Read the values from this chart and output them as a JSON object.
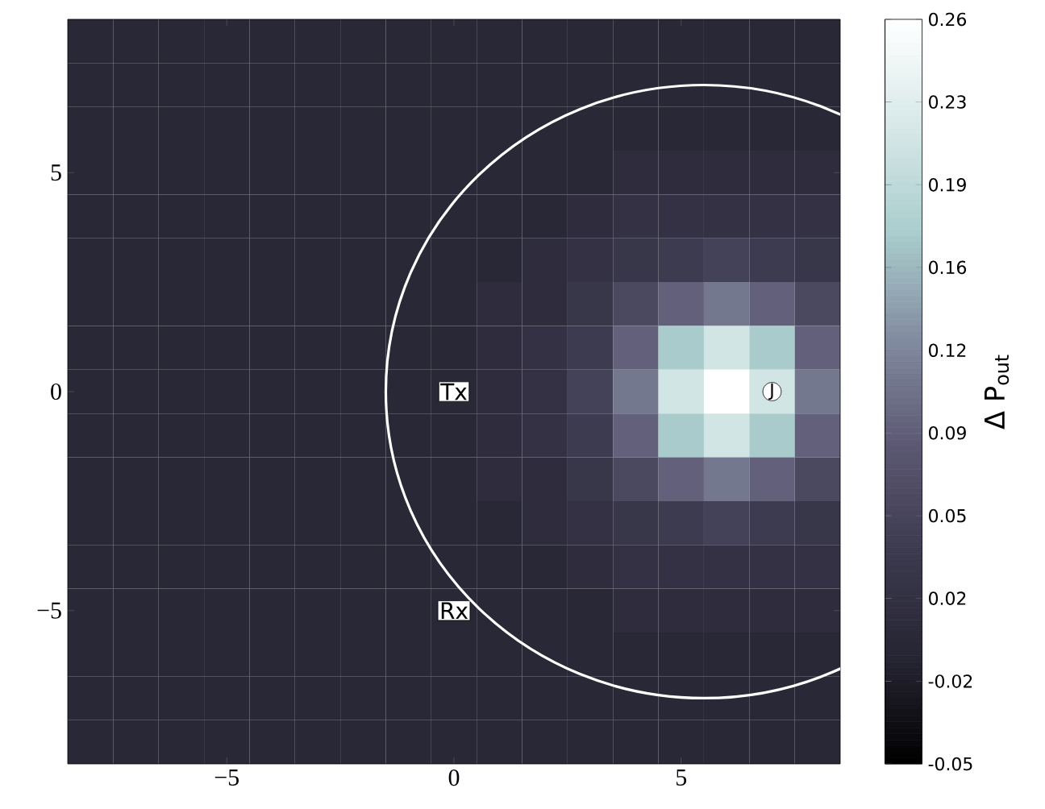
{
  "chart_data": {
    "type": "heatmap",
    "clabel": "Δ P$_{out}$",
    "categories": [
      null,
      null,
      null,
      "−5",
      null,
      null,
      null,
      null,
      "0",
      null,
      null,
      null,
      null,
      "5",
      null,
      null,
      null
    ],
    "y_categories": [
      null,
      null,
      null,
      "5",
      null,
      null,
      null,
      null,
      "0",
      null,
      null,
      null,
      null,
      "−5",
      null,
      null,
      null
    ],
    "cells": [
      [
        0,
        0,
        0,
        0,
        0,
        0,
        0,
        0,
        0,
        0,
        0,
        0,
        0,
        0,
        0,
        0,
        0
      ],
      [
        0,
        0,
        0,
        0,
        0,
        0,
        0,
        0,
        0,
        0,
        0,
        0,
        0,
        0,
        0,
        0,
        0
      ],
      [
        0,
        0,
        0,
        0,
        0,
        0,
        0,
        0,
        0,
        0,
        0,
        0,
        0,
        0,
        0,
        0,
        0
      ],
      [
        0,
        0,
        0,
        0,
        0,
        0,
        0,
        0,
        0,
        0,
        0,
        0,
        0.01,
        0.01,
        0.01,
        0.01,
        0.01
      ],
      [
        0,
        0,
        0,
        0,
        0,
        0,
        0,
        0,
        0,
        0,
        0,
        0.01,
        0.02,
        0.02,
        0.02,
        0.02,
        0.02
      ],
      [
        0,
        0,
        0,
        0,
        0,
        0,
        0,
        0,
        0,
        0,
        0.01,
        0.02,
        0.03,
        0.04,
        0.05,
        0.04,
        0.03
      ],
      [
        0,
        0,
        0,
        0,
        0,
        0,
        0,
        0,
        0,
        0.01,
        0.01,
        0.03,
        0.06,
        0.09,
        0.11,
        0.09,
        0.06
      ],
      [
        0,
        0,
        0,
        0,
        0,
        0,
        0,
        0,
        0,
        0.01,
        0.02,
        0.04,
        0.09,
        0.17,
        0.21,
        0.17,
        0.09
      ],
      [
        0,
        0,
        0,
        0,
        0,
        0,
        0,
        0,
        0,
        0.01,
        0.02,
        0.05,
        0.11,
        0.21,
        0.26,
        0.21,
        0.11
      ],
      [
        0,
        0,
        0,
        0,
        0,
        0,
        0,
        0,
        0,
        0.01,
        0.02,
        0.04,
        0.09,
        0.17,
        0.21,
        0.17,
        0.09
      ],
      [
        0,
        0,
        0,
        0,
        0,
        0,
        0,
        0,
        0,
        0.01,
        0.01,
        0.03,
        0.06,
        0.09,
        0.11,
        0.09,
        0.06
      ],
      [
        0,
        0,
        0,
        0,
        0,
        0,
        0,
        0,
        0,
        0,
        0.01,
        0.02,
        0.03,
        0.04,
        0.05,
        0.04,
        0.03
      ],
      [
        0,
        0,
        0,
        0,
        0,
        0,
        0,
        0,
        0,
        0,
        0,
        0.01,
        0.02,
        0.02,
        0.02,
        0.02,
        0.02
      ],
      [
        0,
        0,
        0,
        0,
        0,
        0,
        0,
        0,
        0,
        0,
        0,
        0,
        0.01,
        0.01,
        0.01,
        0.01,
        0.01
      ],
      [
        0,
        0,
        0,
        0,
        0,
        0,
        0,
        0,
        0,
        0,
        0,
        0,
        0,
        0,
        0,
        0,
        0
      ],
      [
        0,
        0,
        0,
        0,
        0,
        0,
        0,
        0,
        0,
        0,
        0,
        0,
        0,
        0,
        0,
        0,
        0
      ],
      [
        0,
        0,
        0,
        0,
        0,
        0,
        0,
        0,
        0,
        0,
        0,
        0,
        0,
        0,
        0,
        0,
        0
      ]
    ],
    "clim": [
      -0.05,
      0.26
    ],
    "cticks": [
      {
        "value": -0.05,
        "label": "-0.05"
      },
      {
        "value": -0.0156,
        "label": "-0.02"
      },
      {
        "value": 0.0189,
        "label": "0.02"
      },
      {
        "value": 0.0533,
        "label": "0.05"
      },
      {
        "value": 0.0878,
        "label": "0.09"
      },
      {
        "value": 0.1222,
        "label": "0.12"
      },
      {
        "value": 0.1567,
        "label": "0.16"
      },
      {
        "value": 0.1911,
        "label": "0.19"
      },
      {
        "value": 0.2256,
        "label": "0.23"
      },
      {
        "value": 0.26,
        "label": "0.26"
      }
    ],
    "annotations": [
      "Tx",
      "Rx",
      "J"
    ]
  }
}
